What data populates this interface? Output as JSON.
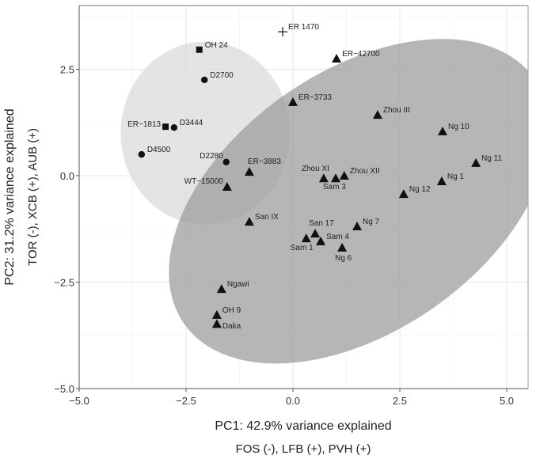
{
  "chart_data": {
    "type": "scatter",
    "title": "",
    "xlabel": "PC1: 42.9% variance explained",
    "xlabel2": "FOS (-), LFB (+), PVH (+)",
    "ylabel": "PC2: 31.2% variance explained",
    "ylabel2": "TOR (-), XCB (+), AUB (+)",
    "xlim": [
      -5.0,
      5.5
    ],
    "ylim": [
      -5.0,
      4.0
    ],
    "xticks": [
      -5.0,
      -2.5,
      0.0,
      2.5,
      5.0
    ],
    "xtick_labels": [
      "−5.0",
      "−2.5",
      "0.0",
      "2.5",
      "5.0"
    ],
    "yticks": [
      -5.0,
      -2.5,
      0.0,
      2.5
    ],
    "ytick_labels": [
      "−5.0",
      "−2.5",
      "0.0",
      "2.5"
    ],
    "grid": true,
    "ellipses": [
      {
        "name": "group-circle-square",
        "color": "#d9d9d9",
        "opacity": 0.7,
        "cx": -2.05,
        "cy": 1.0,
        "rx": 1.98,
        "ry": 2.15,
        "angle": 0
      },
      {
        "name": "group-triangle",
        "color": "#9a9a9a",
        "opacity": 0.72,
        "cx": 1.55,
        "cy": -0.6,
        "rx": 5.0,
        "ry": 3.05,
        "angle": 35
      }
    ],
    "points": [
      {
        "label": "OH 24",
        "shape": "square",
        "x": -2.19,
        "y": 2.96
      },
      {
        "label": "D2700",
        "shape": "circle",
        "x": -2.07,
        "y": 2.25
      },
      {
        "label": "ER−1813",
        "shape": "square",
        "x": -2.98,
        "y": 1.15
      },
      {
        "label": "D3444",
        "shape": "circle",
        "x": -2.78,
        "y": 1.13
      },
      {
        "label": "D4500",
        "shape": "circle",
        "x": -3.54,
        "y": 0.5
      },
      {
        "label": "D2280",
        "shape": "circle",
        "x": -1.56,
        "y": 0.32
      },
      {
        "label": "ER−3883",
        "shape": "triangle",
        "x": -1.02,
        "y": 0.09
      },
      {
        "label": "WT−15000",
        "shape": "triangle",
        "x": -1.54,
        "y": -0.26
      },
      {
        "label": "ER 1470",
        "shape": "cross",
        "x": -0.24,
        "y": 3.38
      },
      {
        "label": "ER−42700",
        "shape": "triangle",
        "x": 1.02,
        "y": 2.75
      },
      {
        "label": "ER−3733",
        "shape": "triangle",
        "x": 0.0,
        "y": 1.73
      },
      {
        "label": "Zhou III",
        "shape": "triangle",
        "x": 1.98,
        "y": 1.43
      },
      {
        "label": "Ng 10",
        "shape": "triangle",
        "x": 3.5,
        "y": 1.04
      },
      {
        "label": "Ng 11",
        "shape": "triangle",
        "x": 4.28,
        "y": 0.3
      },
      {
        "label": "Ng 1",
        "shape": "triangle",
        "x": 3.48,
        "y": -0.13
      },
      {
        "label": "Ng 12",
        "shape": "triangle",
        "x": 2.59,
        "y": -0.43
      },
      {
        "label": "Zhou XI",
        "shape": "triangle",
        "x": 0.72,
        "y": -0.06
      },
      {
        "label": "Sam 3",
        "shape": "triangle",
        "x": 1.0,
        "y": -0.06
      },
      {
        "label": "Zhou XII",
        "shape": "triangle",
        "x": 1.2,
        "y": 0.0
      },
      {
        "label": "San IX",
        "shape": "triangle",
        "x": -1.02,
        "y": -1.08
      },
      {
        "label": "San 17",
        "shape": "triangle",
        "x": 0.52,
        "y": -1.36
      },
      {
        "label": "Sam 1",
        "shape": "triangle",
        "x": 0.31,
        "y": -1.47
      },
      {
        "label": "Sam 4",
        "shape": "triangle",
        "x": 0.65,
        "y": -1.54
      },
      {
        "label": "Ng 6",
        "shape": "triangle",
        "x": 1.15,
        "y": -1.69
      },
      {
        "label": "Ng 7",
        "shape": "triangle",
        "x": 1.5,
        "y": -1.19
      },
      {
        "label": "Ngawi",
        "shape": "triangle",
        "x": -1.67,
        "y": -2.66
      },
      {
        "label": "OH 9",
        "shape": "triangle",
        "x": -1.78,
        "y": -3.27
      },
      {
        "label": "Daka",
        "shape": "triangle",
        "x": -1.78,
        "y": -3.48
      }
    ]
  }
}
